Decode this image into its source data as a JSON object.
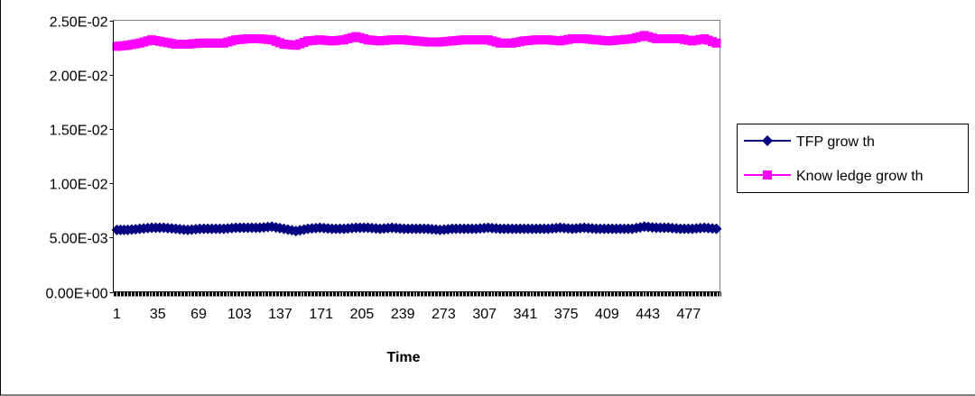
{
  "chart_data": {
    "type": "line",
    "title": "",
    "xlabel": "Time",
    "ylabel": "",
    "ylim": [
      0,
      0.025
    ],
    "y_ticks": [
      {
        "value": 0.0,
        "label": "0.00E+00"
      },
      {
        "value": 0.005,
        "label": "5.00E-03"
      },
      {
        "value": 0.01,
        "label": "1.00E-02"
      },
      {
        "value": 0.015,
        "label": "1.50E-02"
      },
      {
        "value": 0.02,
        "label": "2.00E-02"
      },
      {
        "value": 0.025,
        "label": "2.50E-02"
      }
    ],
    "x_range": [
      1,
      500
    ],
    "x_tick_labels": [
      "1",
      "35",
      "69",
      "103",
      "137",
      "171",
      "205",
      "239",
      "273",
      "307",
      "341",
      "375",
      "409",
      "443",
      "477"
    ],
    "grid": "horizontal",
    "legend_position": "right",
    "series": [
      {
        "name": "TFP grow th",
        "color": "#000080",
        "marker": "diamond",
        "x": [
          1,
          10,
          20,
          30,
          40,
          50,
          60,
          70,
          80,
          90,
          100,
          110,
          120,
          130,
          140,
          150,
          160,
          170,
          180,
          190,
          200,
          210,
          220,
          230,
          240,
          250,
          260,
          270,
          280,
          290,
          300,
          310,
          320,
          330,
          340,
          350,
          360,
          370,
          380,
          390,
          400,
          410,
          420,
          430,
          440,
          450,
          460,
          470,
          480,
          490,
          500
        ],
        "values": [
          0.0057,
          0.0057,
          0.0058,
          0.0059,
          0.0059,
          0.0058,
          0.0057,
          0.0058,
          0.0058,
          0.0058,
          0.0059,
          0.0059,
          0.0059,
          0.006,
          0.0058,
          0.0056,
          0.0058,
          0.0059,
          0.0058,
          0.0058,
          0.0059,
          0.0059,
          0.0058,
          0.0059,
          0.0058,
          0.0058,
          0.0058,
          0.0057,
          0.0058,
          0.0058,
          0.0058,
          0.0059,
          0.0058,
          0.0058,
          0.0058,
          0.0058,
          0.0058,
          0.0059,
          0.0058,
          0.0059,
          0.0058,
          0.0058,
          0.0058,
          0.0058,
          0.006,
          0.0059,
          0.0059,
          0.0058,
          0.0058,
          0.0059,
          0.0058
        ]
      },
      {
        "name": "Know ledge grow th",
        "color": "#FF00FF",
        "marker": "square",
        "x": [
          1,
          10,
          20,
          30,
          40,
          50,
          60,
          70,
          80,
          90,
          100,
          110,
          120,
          130,
          140,
          150,
          160,
          170,
          180,
          190,
          200,
          210,
          220,
          230,
          240,
          250,
          260,
          270,
          280,
          290,
          300,
          310,
          320,
          330,
          340,
          350,
          360,
          370,
          380,
          390,
          400,
          410,
          420,
          430,
          440,
          450,
          460,
          470,
          480,
          490,
          500
        ],
        "values": [
          0.0226,
          0.0227,
          0.0229,
          0.0232,
          0.023,
          0.0228,
          0.0228,
          0.0229,
          0.0229,
          0.0229,
          0.0232,
          0.0233,
          0.0233,
          0.0232,
          0.0228,
          0.0227,
          0.0231,
          0.0232,
          0.0231,
          0.0232,
          0.0235,
          0.0232,
          0.0231,
          0.0232,
          0.0232,
          0.0231,
          0.023,
          0.023,
          0.0231,
          0.0232,
          0.0232,
          0.0232,
          0.0229,
          0.0229,
          0.0231,
          0.0232,
          0.0232,
          0.0231,
          0.0233,
          0.0233,
          0.0232,
          0.0231,
          0.0232,
          0.0233,
          0.0236,
          0.0233,
          0.0233,
          0.0233,
          0.0231,
          0.0233,
          0.0229
        ]
      }
    ]
  }
}
